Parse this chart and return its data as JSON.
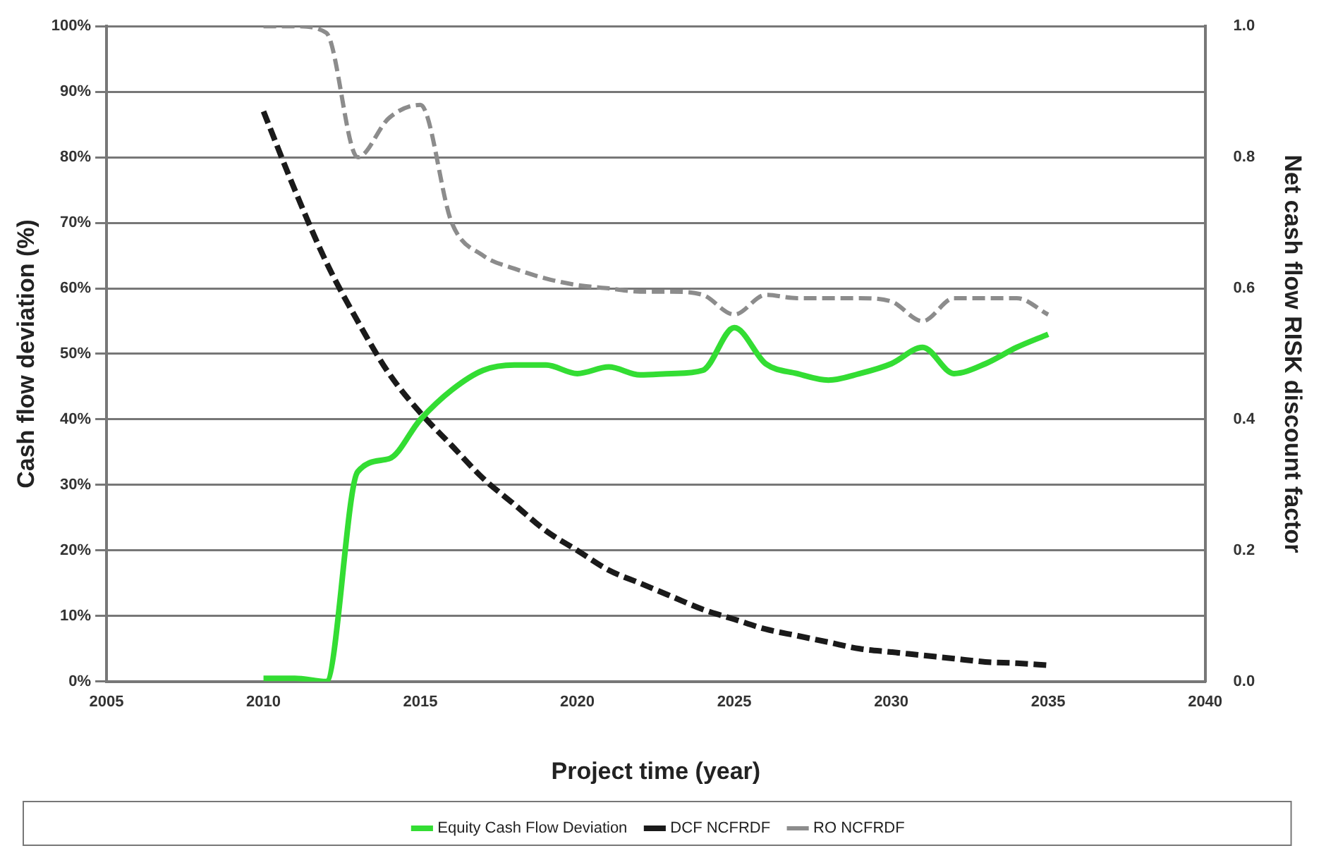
{
  "chart_data": {
    "type": "line",
    "xlabel": "Project time (year)",
    "ylabel": "Cash flow deviation (%)",
    "y2label": "Net cash flow RISK discount factor",
    "xlim": [
      2005,
      2040
    ],
    "xticks": [
      2005,
      2010,
      2015,
      2020,
      2025,
      2030,
      2035,
      2040
    ],
    "ylim": [
      0,
      100
    ],
    "yticks": [
      {
        "value": 0,
        "label": "0%"
      },
      {
        "value": 10,
        "label": "10%"
      },
      {
        "value": 20,
        "label": "20%"
      },
      {
        "value": 30,
        "label": "30%"
      },
      {
        "value": 40,
        "label": "40%"
      },
      {
        "value": 50,
        "label": "50%"
      },
      {
        "value": 60,
        "label": "60%"
      },
      {
        "value": 70,
        "label": "70%"
      },
      {
        "value": 80,
        "label": "80%"
      },
      {
        "value": 90,
        "label": "90%"
      },
      {
        "value": 100,
        "label": "100%"
      }
    ],
    "y2lim": [
      0,
      1
    ],
    "y2ticks": [
      {
        "value": 0,
        "label": "0.0"
      },
      0.2,
      0.4,
      0.6,
      0.8,
      {
        "value": 1,
        "label": "1.0"
      }
    ],
    "grid": "y",
    "legend": "bottom",
    "marker": "none",
    "x": [
      2010,
      2011,
      2012,
      2013,
      2014,
      2015,
      2016,
      2017,
      2018,
      2019,
      2020,
      2021,
      2022,
      2023,
      2024,
      2025,
      2026,
      2027,
      2028,
      2029,
      2030,
      2031,
      2032,
      2033,
      2034,
      2035
    ],
    "series": [
      {
        "name": "Equity Cash Flow Deviation",
        "color": "#33dd33",
        "line_style": "solid",
        "values": [
          0.5,
          0.5,
          0,
          32,
          34,
          40,
          44.5,
          47.5,
          48.3,
          48.3,
          47,
          48,
          46.8,
          47,
          47.5,
          54,
          48.5,
          47,
          46,
          47,
          48.5,
          51,
          47,
          48.5,
          51,
          53
        ]
      },
      {
        "name": "DCF NCFRDF",
        "color": "#1a1a1a",
        "line_style": "dashed",
        "axis": "y2",
        "values": [
          0.87,
          0.75,
          0.64,
          0.55,
          0.47,
          0.41,
          0.36,
          0.31,
          0.27,
          0.23,
          0.2,
          0.17,
          0.15,
          0.13,
          0.11,
          0.095,
          0.08,
          0.07,
          0.06,
          0.05,
          0.045,
          0.04,
          0.035,
          0.03,
          0.028,
          0.025
        ]
      },
      {
        "name": "RO NCFRDF",
        "color": "#8c8c8c",
        "line_style": "dashed",
        "axis": "y2",
        "values": [
          1.0,
          1.0,
          0.99,
          0.8,
          0.86,
          0.88,
          0.7,
          0.65,
          0.63,
          0.615,
          0.605,
          0.6,
          0.595,
          0.595,
          0.59,
          0.56,
          0.59,
          0.585,
          0.585,
          0.585,
          0.58,
          0.55,
          0.585,
          0.585,
          0.585,
          0.56
        ]
      }
    ]
  }
}
